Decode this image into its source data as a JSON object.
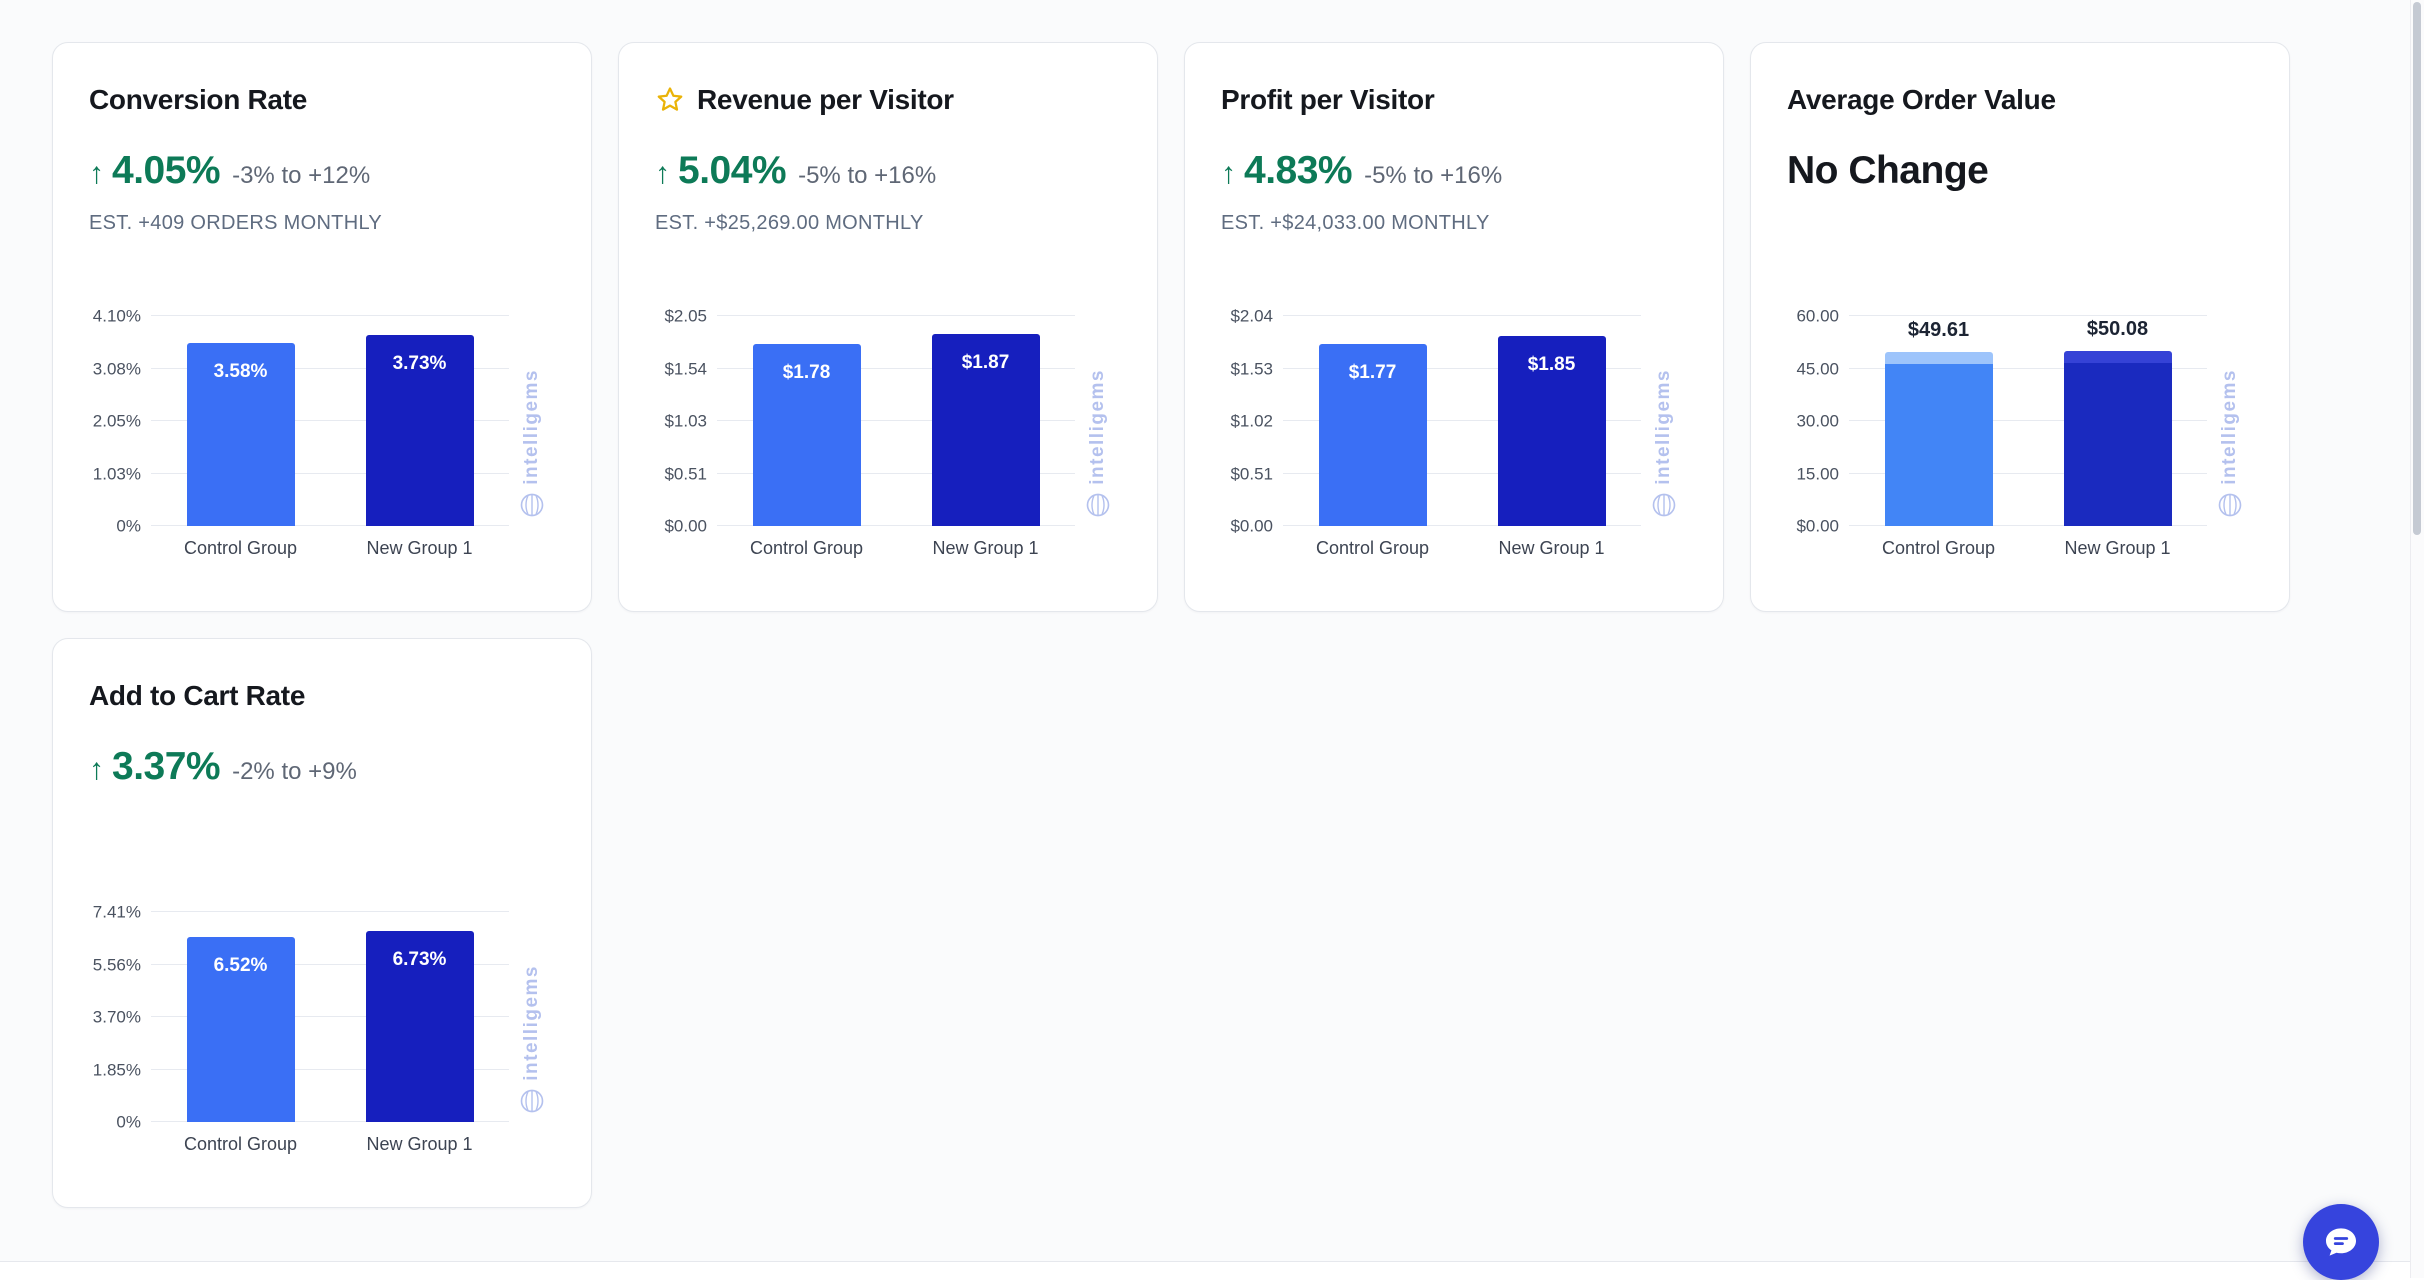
{
  "colors": {
    "positive_green": "#0d7a57",
    "control_bar_blue": "#3a6ff5",
    "test_bar_blue": "#161fbe",
    "chat_button_blue": "#3644dd",
    "watermark_blue": "#b4c1ee"
  },
  "watermark": {
    "text": "intelligems"
  },
  "cards": [
    {
      "title": "Conversion Rate",
      "headline": {
        "arrow": "↑",
        "value": "4.05%",
        "range": "-3% to +12%"
      },
      "estimate": "EST. +409 ORDERS MONTHLY",
      "chart_data": {
        "type": "bar",
        "categories": [
          "Control Group",
          "New Group 1"
        ],
        "values": [
          3.58,
          3.73
        ],
        "value_labels": [
          "3.58%",
          "3.73%"
        ],
        "label_position": "inside",
        "ticks": [
          "0%",
          "1.03%",
          "2.05%",
          "3.08%",
          "4.10%"
        ],
        "ymax": 4.1,
        "ylim": [
          0,
          4.1
        ],
        "bar_colors": [
          "#3a6ff5",
          "#161fbe"
        ]
      }
    },
    {
      "title": "Revenue per Visitor",
      "headline": {
        "arrow": "↑",
        "value": "5.04%",
        "range": "-5% to +16%"
      },
      "estimate": "EST. +$25,269.00 MONTHLY",
      "chart_data": {
        "type": "bar",
        "categories": [
          "Control Group",
          "New Group 1"
        ],
        "values": [
          1.78,
          1.87
        ],
        "value_labels": [
          "$1.78",
          "$1.87"
        ],
        "label_position": "inside",
        "ticks": [
          "$0.00",
          "$0.51",
          "$1.03",
          "$1.54",
          "$2.05"
        ],
        "ymax": 2.05,
        "ylim": [
          0,
          2.05
        ],
        "bar_colors": [
          "#3a6ff5",
          "#161fbe"
        ]
      }
    },
    {
      "title": "Profit per Visitor",
      "headline": {
        "arrow": "↑",
        "value": "4.83%",
        "range": "-5% to +16%"
      },
      "estimate": "EST. +$24,033.00 MONTHLY",
      "chart_data": {
        "type": "bar",
        "categories": [
          "Control Group",
          "New Group 1"
        ],
        "values": [
          1.77,
          1.85
        ],
        "value_labels": [
          "$1.77",
          "$1.85"
        ],
        "label_position": "inside",
        "ticks": [
          "$0.00",
          "$0.51",
          "$1.02",
          "$1.53",
          "$2.04"
        ],
        "ymax": 2.04,
        "ylim": [
          0,
          2.04
        ],
        "bar_colors": [
          "#3a6ff5",
          "#161fbe"
        ]
      }
    },
    {
      "title": "Average Order Value",
      "headline": {
        "value": "No Change"
      },
      "estimate": "",
      "chart_data": {
        "type": "bar",
        "categories": [
          "Control Group",
          "New Group 1"
        ],
        "values": [
          49.61,
          50.08
        ],
        "value_labels": [
          "$49.61",
          "$50.08"
        ],
        "label_position": "above",
        "ticks": [
          "$0.00",
          "15.00",
          "30.00",
          "45.00",
          "60.00"
        ],
        "ymax": 60,
        "ylim": [
          0,
          60
        ],
        "bar_colors": [
          "#4285f6",
          "#1a2abf"
        ],
        "cap_colors": [
          "#9dc4fb",
          "#3542d6"
        ]
      }
    },
    {
      "title": "Add to Cart Rate",
      "headline": {
        "arrow": "↑",
        "value": "3.37%",
        "range": "-2% to +9%"
      },
      "estimate": "",
      "chart_data": {
        "type": "bar",
        "categories": [
          "Control Group",
          "New Group 1"
        ],
        "values": [
          6.52,
          6.73
        ],
        "value_labels": [
          "6.52%",
          "6.73%"
        ],
        "label_position": "inside",
        "ticks": [
          "0%",
          "1.85%",
          "3.70%",
          "5.56%",
          "7.41%"
        ],
        "ymax": 7.41,
        "ylim": [
          0,
          7.41
        ],
        "bar_colors": [
          "#3a6ff5",
          "#161fbe"
        ]
      }
    }
  ]
}
